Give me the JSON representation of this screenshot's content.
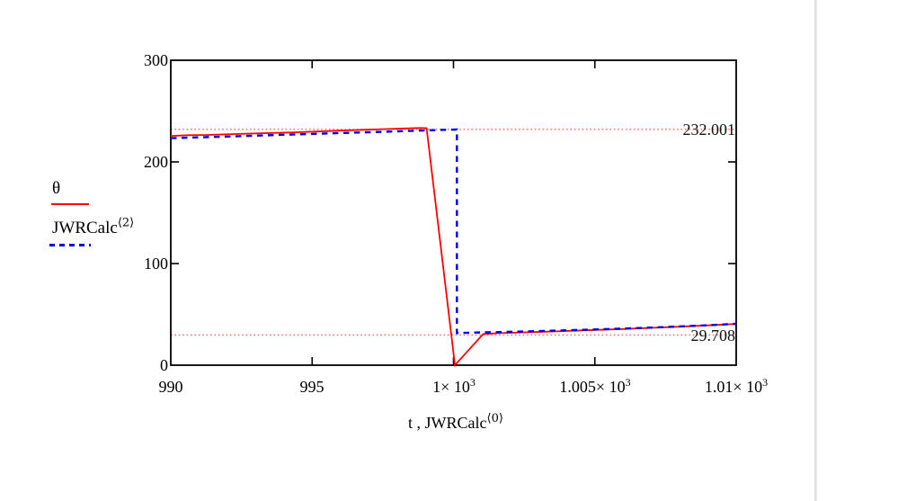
{
  "page": {
    "background": "#ffffff",
    "page_break_color": "#e7e7e7"
  },
  "legend": {
    "items": [
      {
        "label": "θ",
        "sup": "",
        "line_color": "#ff0000",
        "line_style": "solid"
      },
      {
        "label": "JWRCalc",
        "sup": "⟨2⟩",
        "line_color": "#0000ee",
        "line_style": "dashed"
      }
    ]
  },
  "chart_data": {
    "type": "line",
    "title": "",
    "xlabel_base": "t , JWRCalc",
    "xlabel_sup": "⟨0⟩",
    "ylabel": "",
    "xlim": [
      990,
      1010
    ],
    "ylim": [
      0,
      300
    ],
    "grid": "off",
    "legend_position": "left-outside",
    "frame_color": "#000000",
    "x_ticks": [
      {
        "v": 990,
        "base": "990",
        "exp": ""
      },
      {
        "v": 995,
        "base": "995",
        "exp": ""
      },
      {
        "v": 1000,
        "base": "1× 10",
        "exp": "3"
      },
      {
        "v": 1005,
        "base": "1.005× 10",
        "exp": "3"
      },
      {
        "v": 1010,
        "base": "1.01× 10",
        "exp": "3"
      }
    ],
    "y_ticks": [
      {
        "v": 0,
        "label": "0"
      },
      {
        "v": 100,
        "label": "100"
      },
      {
        "v": 200,
        "label": "200"
      },
      {
        "v": 300,
        "label": "300"
      }
    ],
    "markers": [
      {
        "value": 232.001,
        "label": "232.001",
        "color": "#ff6666"
      },
      {
        "value": 29.708,
        "label": "29.708",
        "color": "#ff6666"
      }
    ],
    "series": [
      {
        "name": "θ",
        "sup": "",
        "color": "#ff0000",
        "style": "solid",
        "points": [
          [
            990,
            225.6
          ],
          [
            990.6,
            226.3
          ],
          [
            991.2,
            226.5
          ],
          [
            992,
            227.2
          ],
          [
            992.8,
            227.9
          ],
          [
            993.6,
            228.5
          ],
          [
            994.4,
            229.1
          ],
          [
            995.2,
            229.9
          ],
          [
            996,
            230.8
          ],
          [
            996.8,
            231.6
          ],
          [
            997.6,
            232.3
          ],
          [
            998.3,
            232.9
          ],
          [
            998.8,
            233.4
          ],
          [
            999.05,
            233.2
          ],
          [
            1000.05,
            0
          ],
          [
            1001.05,
            30.6
          ],
          [
            1001.6,
            31.5
          ],
          [
            1002.4,
            32.2
          ],
          [
            1003.2,
            32.9
          ],
          [
            1004,
            33.6
          ],
          [
            1005,
            34.7
          ],
          [
            1006,
            35.6
          ],
          [
            1007,
            36.7
          ],
          [
            1008,
            37.9
          ],
          [
            1009,
            39.2
          ],
          [
            1010,
            40.6
          ]
        ]
      },
      {
        "name": "JWRCalc",
        "sup": "⟨2⟩",
        "color": "#0000ee",
        "style": "dashed",
        "points": [
          [
            990,
            223.4
          ],
          [
            991,
            224.2
          ],
          [
            992,
            225.0
          ],
          [
            993,
            225.8
          ],
          [
            994,
            226.7
          ],
          [
            995,
            227.5
          ],
          [
            996,
            228.4
          ],
          [
            997,
            229.2
          ],
          [
            998,
            230.1
          ],
          [
            999,
            231.0
          ],
          [
            999.7,
            231.6
          ],
          [
            1000.12,
            231.9
          ],
          [
            1000.12,
            31.6
          ],
          [
            1000.8,
            32.1
          ],
          [
            1001.6,
            32.6
          ],
          [
            1002.4,
            33.1
          ],
          [
            1003.2,
            33.7
          ],
          [
            1004,
            34.3
          ],
          [
            1005,
            35.1
          ],
          [
            1006,
            36.0
          ],
          [
            1007,
            37.0
          ],
          [
            1008,
            38.1
          ],
          [
            1009,
            39.3
          ],
          [
            1010,
            40.7
          ]
        ]
      }
    ]
  }
}
